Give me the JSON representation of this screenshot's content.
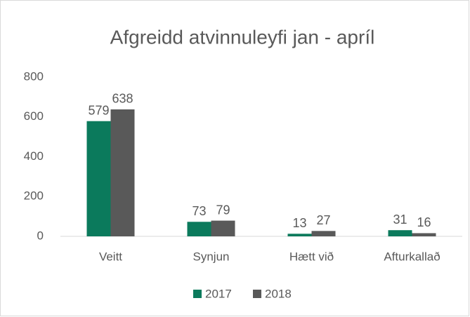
{
  "chart_data": {
    "type": "bar",
    "title": "Afgreidd atvinnuleyfi jan - apríl",
    "categories": [
      "Veitt",
      "Synjun",
      "Hætt við",
      "Afturkallað"
    ],
    "series": [
      {
        "name": "2017",
        "color": "#0b7a5c",
        "values": [
          579,
          73,
          13,
          31
        ]
      },
      {
        "name": "2018",
        "color": "#595959",
        "values": [
          638,
          79,
          27,
          16
        ]
      }
    ],
    "ylim": [
      0,
      800
    ],
    "yticks": [
      0,
      200,
      400,
      600,
      800
    ],
    "grid": false,
    "legend": "bottom"
  }
}
